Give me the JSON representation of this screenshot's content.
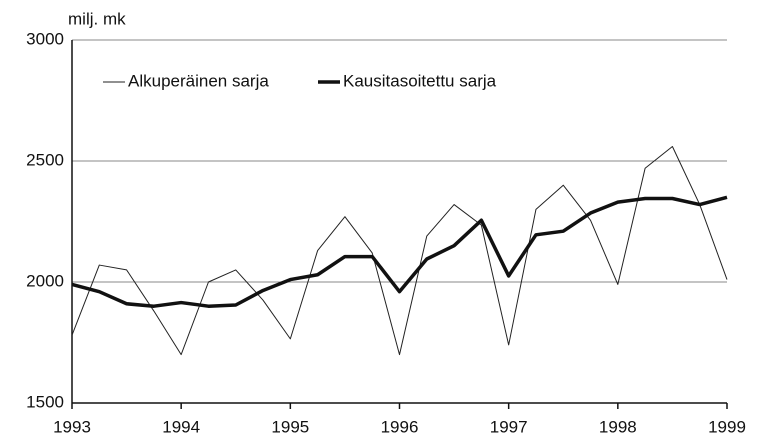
{
  "chart_data": {
    "type": "line",
    "y_axis_label": "milj. mk",
    "x": [
      1993,
      1993.25,
      1993.5,
      1993.75,
      1994,
      1994.25,
      1994.5,
      1994.75,
      1995,
      1995.25,
      1995.5,
      1995.75,
      1996,
      1996.25,
      1996.5,
      1996.75,
      1997,
      1997.25,
      1997.5,
      1997.75,
      1998,
      1998.25,
      1998.5,
      1998.75,
      1999
    ],
    "series": [
      {
        "name": "Alkuperäinen sarja",
        "color": "#222222",
        "width": 1,
        "values": [
          1780,
          2070,
          2050,
          1880,
          1700,
          2000,
          2050,
          1925,
          1765,
          2130,
          2270,
          2120,
          1700,
          2190,
          2320,
          2235,
          1740,
          2300,
          2400,
          2255,
          1990,
          2470,
          2560,
          2320,
          2010
        ]
      },
      {
        "name": "Kausitasoitettu sarja",
        "color": "#111111",
        "width": 3.5,
        "values": [
          1990,
          1960,
          1910,
          1900,
          1915,
          1900,
          1905,
          1965,
          2010,
          2030,
          2105,
          2105,
          1960,
          2095,
          2150,
          2255,
          2025,
          2195,
          2210,
          2285,
          2330,
          2345,
          2345,
          2320,
          2350
        ]
      }
    ],
    "xlim": [
      1993,
      1999
    ],
    "xticks": [
      1993,
      1994,
      1995,
      1996,
      1997,
      1998,
      1999
    ],
    "ylim": [
      1500,
      3000
    ],
    "yticks": [
      1500,
      2000,
      2500,
      3000
    ],
    "grid": true,
    "legend": "top-left"
  }
}
